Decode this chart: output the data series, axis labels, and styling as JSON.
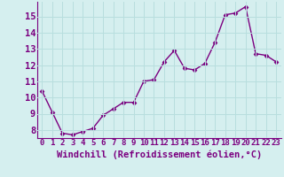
{
  "x": [
    0,
    1,
    2,
    3,
    4,
    5,
    6,
    7,
    8,
    9,
    10,
    11,
    12,
    13,
    14,
    15,
    16,
    17,
    18,
    19,
    20,
    21,
    22,
    23
  ],
  "y": [
    10.4,
    9.1,
    7.8,
    7.7,
    7.9,
    8.1,
    8.9,
    9.3,
    9.7,
    9.7,
    11.0,
    11.1,
    12.2,
    12.9,
    11.8,
    11.7,
    12.1,
    13.4,
    15.1,
    15.2,
    15.6,
    12.7,
    12.6,
    12.2
  ],
  "line_color": "#7b0080",
  "marker": "D",
  "marker_size": 2.5,
  "line_width": 1.0,
  "bg_color": "#d5efef",
  "grid_color": "#b8dede",
  "xlabel": "Windchill (Refroidissement éolien,°C)",
  "ylabel_ticks": [
    8,
    9,
    10,
    11,
    12,
    13,
    14,
    15
  ],
  "ylim": [
    7.5,
    15.9
  ],
  "xlim": [
    -0.5,
    23.5
  ],
  "label_color": "#7b0080",
  "tick_color": "#7b0080",
  "font_size_xlabel": 7.5,
  "font_size_yticks": 7.5,
  "font_size_xticks": 6.5
}
